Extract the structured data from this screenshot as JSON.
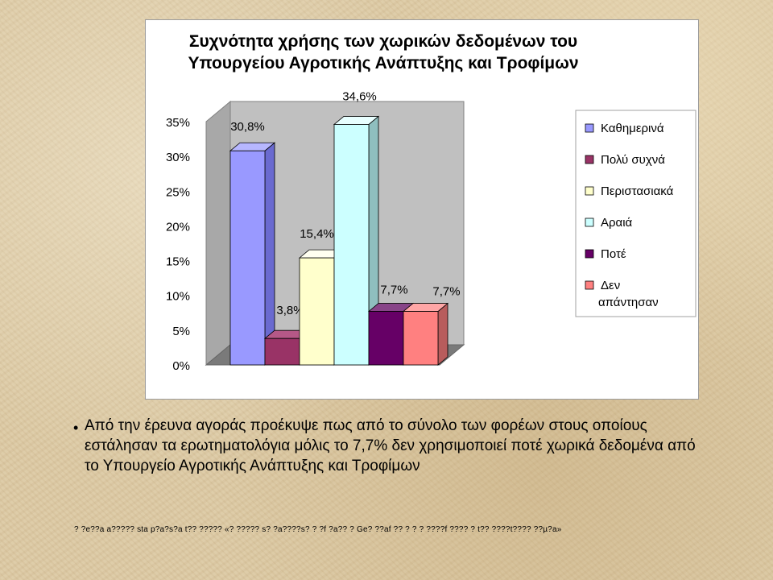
{
  "chart_data": {
    "type": "bar",
    "title_lines": [
      "Συχνότητα χρήσης των χωρικών δεδομένων του",
      "Υπουργείου Αγροτικής Ανάπτυξης και Τροφίμων"
    ],
    "yticks": [
      "0%",
      "5%",
      "10%",
      "15%",
      "20%",
      "25%",
      "30%",
      "35%"
    ],
    "ylim": [
      0,
      35
    ],
    "grid": false,
    "legend_position": "right",
    "series": [
      {
        "name": "Καθημερινά",
        "value": 30.8,
        "label": "30,8%",
        "color": "#9999ff",
        "side": "#6a6ad0",
        "top": "#b7b7ff"
      },
      {
        "name": "Πολύ συχνά",
        "value": 3.8,
        "label": "3,8%",
        "color": "#993366",
        "side": "#6b2347",
        "top": "#b55887"
      },
      {
        "name": "Περιστασιακά",
        "value": 15.4,
        "label": "15,4%",
        "color": "#ffffcc",
        "side": "#bfbf8f",
        "top": "#fffff0"
      },
      {
        "name": "Αραιά",
        "value": 34.6,
        "label": "34,6%",
        "color": "#ccffff",
        "side": "#8fbfbf",
        "top": "#e8ffff"
      },
      {
        "name": "Ποτέ",
        "value": 7.7,
        "label": "7,7%",
        "color": "#660066",
        "side": "#440044",
        "top": "#884488"
      },
      {
        "name": "Δεν απάντησαν",
        "value": 7.7,
        "label": "7,7%",
        "color": "#ff8080",
        "side": "#b85c5c",
        "top": "#ffa6a6"
      }
    ],
    "legend_lines": [
      [
        "Καθημερινά"
      ],
      [
        "Πολύ συχνά"
      ],
      [
        "Περιστασιακά"
      ],
      [
        "Αραιά"
      ],
      [
        "Ποτέ"
      ],
      [
        "Δεν",
        "απάντησαν"
      ]
    ]
  },
  "bullet": {
    "symbol": "•",
    "text": "Από την έρευνα αγοράς προέκυψε πως από το σύνολο των φορέων στους οποίους εστάλησαν τα ερωτηματολόγια μόλις το 7,7% δεν χρησιμοποιεί ποτέ χωρικά δεδομένα από το Υπουργείο Αγροτικής Ανάπτυξης και Τροφίμων"
  },
  "footer": "? ?e??a a????? sta p?a?s?a t?? ????? «? ????? s? ?a????s? ? ?f ?a?? ? Ge? ??af ?? ? ? ? ????f ???? ? t?? ????t???? ??µ?a»"
}
